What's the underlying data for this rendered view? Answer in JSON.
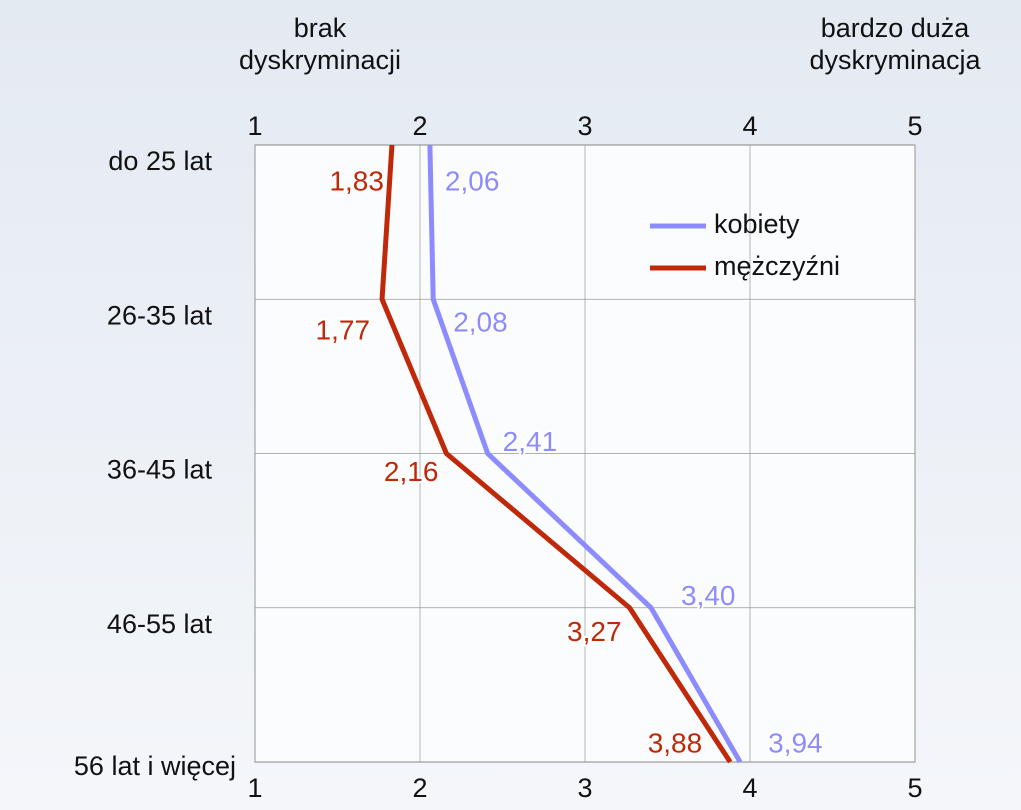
{
  "chart_data": {
    "type": "line",
    "annotations": [
      "brak dyskryminacji",
      "bardzo duża dyskryminacja"
    ],
    "categories": [
      "do 25 lat",
      "26-35 lat",
      "36-45 lat",
      "46-55 lat",
      "56 lat i więcej"
    ],
    "series": [
      {
        "name": "kobiety",
        "color": "#8c8cff",
        "values": [
          2.06,
          2.08,
          2.41,
          3.4,
          3.94
        ],
        "value_labels": [
          "2,06",
          "2,08",
          "2,41",
          "3,40",
          "3,94"
        ]
      },
      {
        "name": "mężczyźni",
        "color": "#c0280a",
        "values": [
          1.83,
          1.77,
          2.16,
          3.27,
          3.88
        ],
        "value_labels": [
          "1,83",
          "1,77",
          "2,16",
          "3,27",
          "3,88"
        ]
      }
    ],
    "xlim": [
      1,
      5
    ],
    "xticks": [
      1,
      2,
      3,
      4,
      5
    ],
    "grid": true
  }
}
